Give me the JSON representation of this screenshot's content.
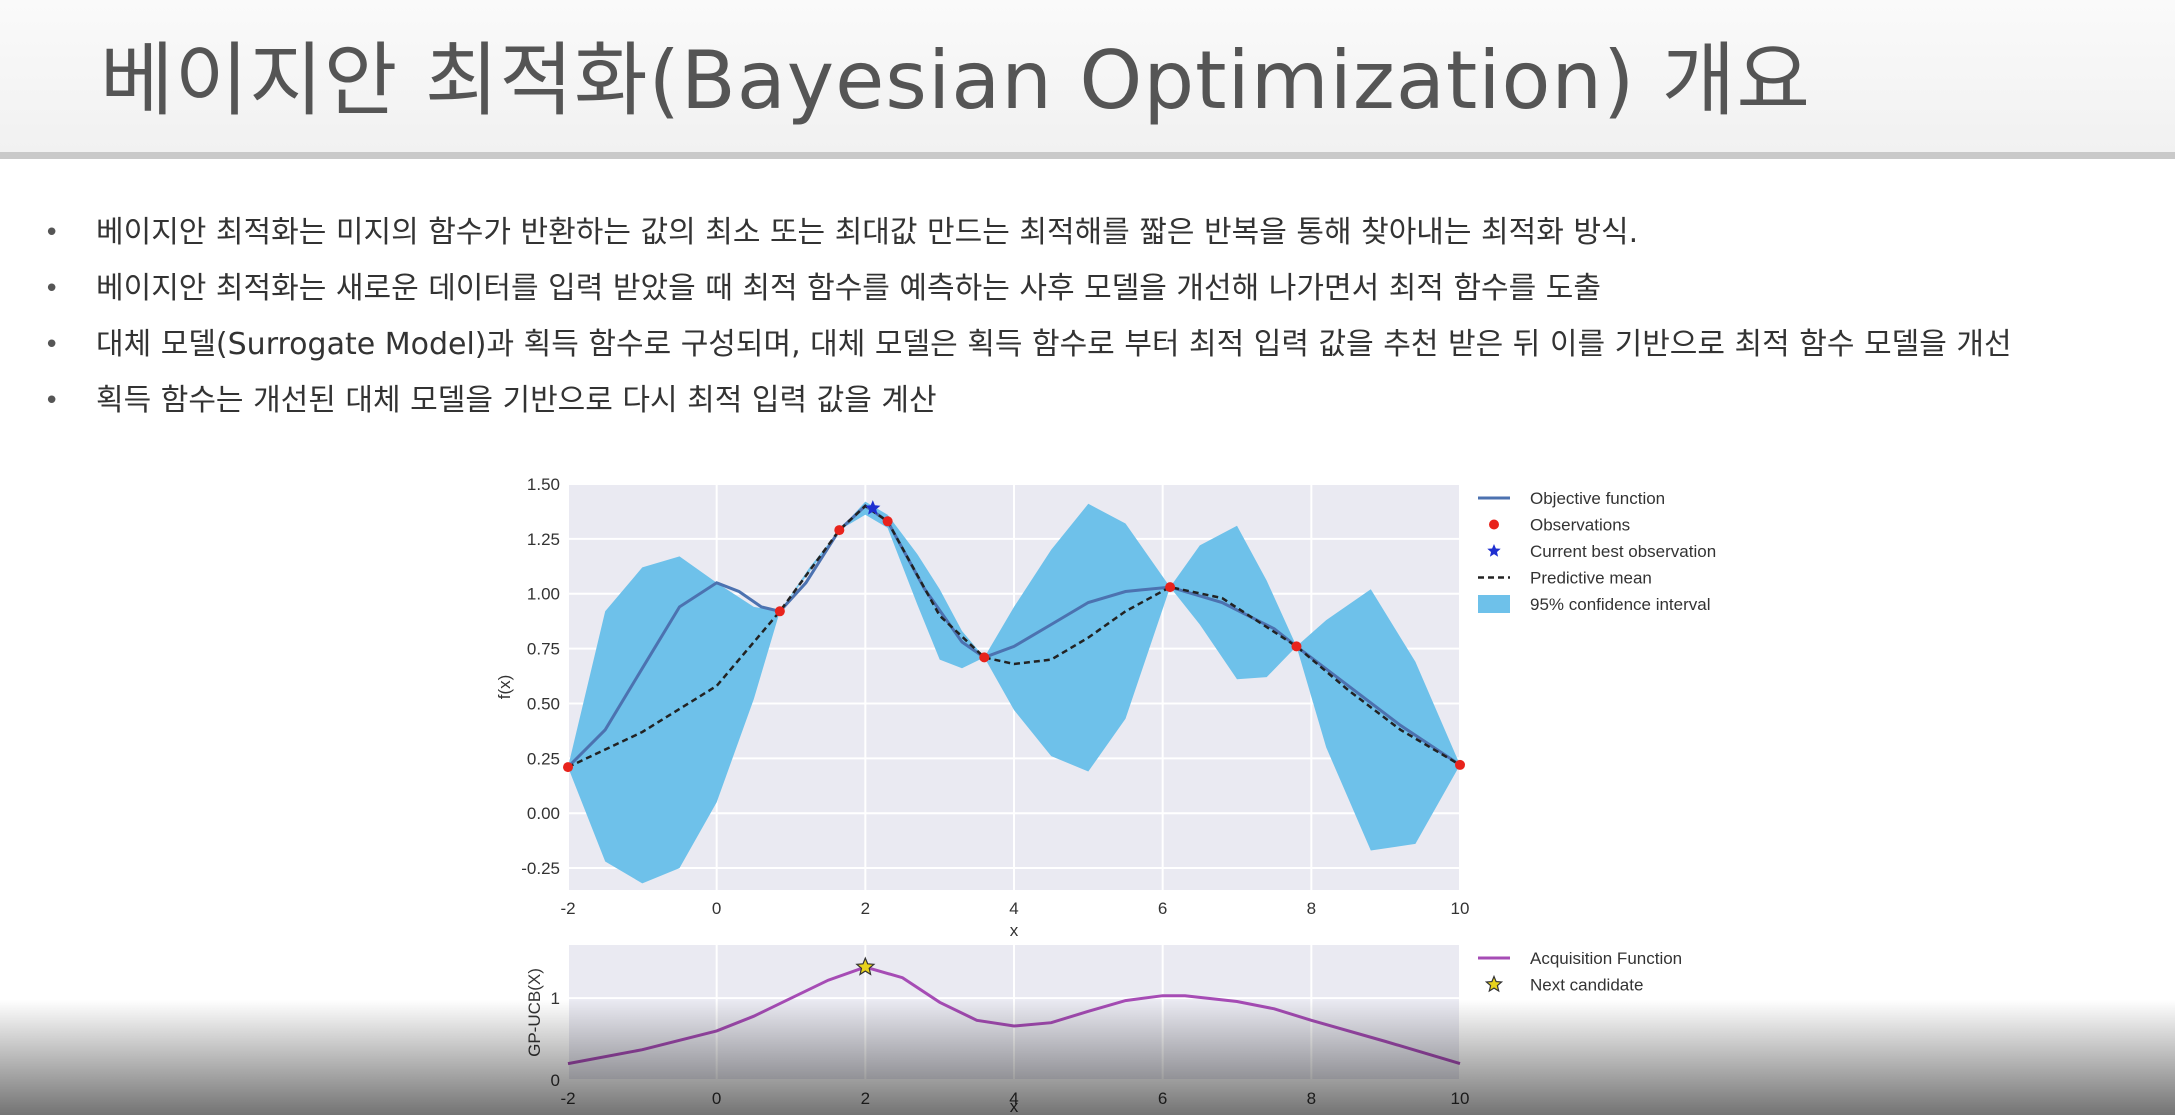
{
  "slide": {
    "title": "베이지안 최적화(Bayesian Optimization) 개요",
    "bullets": [
      "베이지안 최적화는 미지의 함수가 반환하는 값의 최소 또는 최대값 만드는 최적해를 짧은 반복을 통해  찾아내는 최적화 방식.",
      "베이지안 최적화는 새로운 데이터를 입력 받았을 때 최적 함수를 예측하는 사후 모델을 개선해 나가면서 최적 함수를 도출",
      "대체 모델(Surrogate Model)과 획득 함수로 구성되며,  대체 모델은 획득 함수로 부터 최적 입력 값을 추천 받은 뒤 이를 기반으로 최적 함수 모델을 개선",
      "획득 함수는 개선된 대체 모델을 기반으로 다시 최적 입력 값을 계산"
    ]
  },
  "colors": {
    "plot_bg": "#eaeaf2",
    "objective": "#4c72b0",
    "ci_fill": "#6ec1ea",
    "observation": "#e8231c",
    "best": "#1f2fd0",
    "acquisition": "#a64cb5",
    "candidate": "#e8d21c"
  },
  "chart_data": [
    {
      "type": "line",
      "xlabel": "x",
      "ylabel": "f(x)",
      "xlim": [
        -2,
        10
      ],
      "ylim": [
        -0.35,
        1.5
      ],
      "xticks": [
        "-2",
        "0",
        "2",
        "4",
        "6",
        "8",
        "10"
      ],
      "yticks": [
        "1.50",
        "1.25",
        "1.00",
        "0.75",
        "0.50",
        "0.25",
        "0.00",
        "-0.25"
      ],
      "grid": true,
      "legend_position": "right",
      "legend": [
        "Objective function",
        "Observations",
        "Current best observation",
        "Predictive mean",
        "95% confidence interval"
      ],
      "objective": {
        "x": [
          -2,
          -1.5,
          -1,
          -0.5,
          0,
          0.3,
          0.6,
          0.85,
          1.2,
          1.65,
          2.0,
          2.3,
          2.8,
          3.3,
          3.6,
          4.0,
          4.5,
          5.0,
          5.5,
          6.1,
          6.8,
          7.5,
          7.8,
          8.5,
          9.2,
          10
        ],
        "y": [
          0.21,
          0.38,
          0.66,
          0.94,
          1.05,
          1.01,
          0.94,
          0.92,
          1.05,
          1.29,
          1.4,
          1.33,
          1.02,
          0.78,
          0.71,
          0.76,
          0.86,
          0.96,
          1.01,
          1.03,
          0.96,
          0.84,
          0.76,
          0.58,
          0.4,
          0.22
        ]
      },
      "predictive_mean": {
        "x": [
          -2,
          -1,
          0,
          0.85,
          1.65,
          2.0,
          2.3,
          3.0,
          3.6,
          4.0,
          4.5,
          5.0,
          5.5,
          6.1,
          6.8,
          7.8,
          8.5,
          9.2,
          10
        ],
        "y": [
          0.21,
          0.37,
          0.58,
          0.92,
          1.29,
          1.4,
          1.33,
          0.9,
          0.71,
          0.68,
          0.7,
          0.8,
          0.92,
          1.03,
          0.98,
          0.76,
          0.56,
          0.38,
          0.22
        ]
      },
      "confidence_interval": {
        "x": [
          -2,
          -1.5,
          -1,
          -0.5,
          0,
          0.5,
          0.85,
          1.25,
          1.65,
          2.0,
          2.3,
          2.7,
          3.0,
          3.3,
          3.6,
          4.0,
          4.5,
          5.0,
          5.5,
          6.1,
          6.5,
          7.0,
          7.4,
          7.8,
          8.2,
          8.8,
          9.4,
          10
        ],
        "lower": [
          0.21,
          -0.22,
          -0.32,
          -0.25,
          0.05,
          0.52,
          0.92,
          1.1,
          1.29,
          1.36,
          1.3,
          0.95,
          0.7,
          0.66,
          0.71,
          0.47,
          0.26,
          0.19,
          0.43,
          1.03,
          0.86,
          0.61,
          0.62,
          0.76,
          0.3,
          -0.17,
          -0.14,
          0.22
        ],
        "upper": [
          0.21,
          0.92,
          1.12,
          1.17,
          1.05,
          0.94,
          0.92,
          1.12,
          1.29,
          1.42,
          1.36,
          1.18,
          1.02,
          0.83,
          0.71,
          0.94,
          1.2,
          1.41,
          1.32,
          1.03,
          1.22,
          1.31,
          1.06,
          0.76,
          0.88,
          1.02,
          0.69,
          0.22
        ]
      },
      "observations": {
        "x": [
          -2,
          0.85,
          1.65,
          2.3,
          3.6,
          6.1,
          7.8,
          10
        ],
        "y": [
          0.21,
          0.92,
          1.29,
          1.33,
          0.71,
          1.03,
          0.76,
          0.22
        ]
      },
      "current_best": {
        "x": 2.1,
        "y": 1.39
      }
    },
    {
      "type": "line",
      "xlabel": "x",
      "ylabel": "GP-UCB(X)",
      "xlim": [
        -2,
        10
      ],
      "ylim": [
        0,
        1.65
      ],
      "xticks": [
        "-2",
        "0",
        "2",
        "4",
        "6",
        "8",
        "10"
      ],
      "yticks": [
        "1",
        "0"
      ],
      "grid": true,
      "legend_position": "right",
      "legend": [
        "Acquisition Function",
        "Next candidate"
      ],
      "acquisition": {
        "x": [
          -2,
          -1,
          0,
          0.5,
          1,
          1.5,
          2.0,
          2.5,
          3.0,
          3.5,
          4.0,
          4.5,
          5.0,
          5.5,
          6.0,
          6.3,
          7.0,
          7.5,
          8.0,
          9.0,
          10
        ],
        "y": [
          0.2,
          0.37,
          0.6,
          0.78,
          1.0,
          1.22,
          1.38,
          1.25,
          0.95,
          0.73,
          0.66,
          0.7,
          0.84,
          0.97,
          1.03,
          1.03,
          0.96,
          0.87,
          0.73,
          0.47,
          0.2
        ]
      },
      "next_candidate": {
        "x": 2.0,
        "y": 1.38
      }
    }
  ]
}
